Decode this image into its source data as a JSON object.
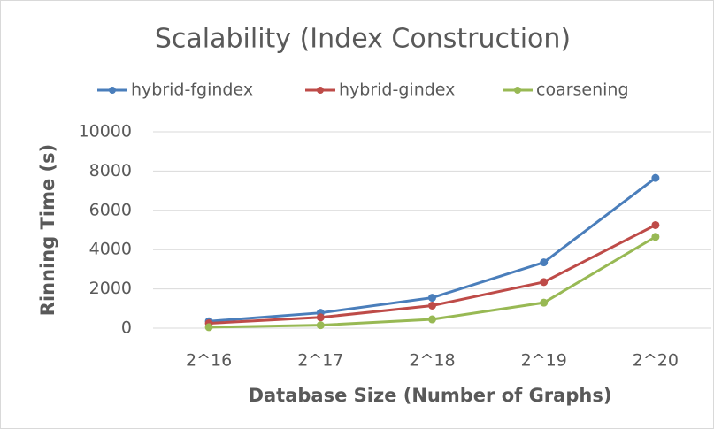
{
  "chart_data": {
    "type": "line",
    "title": "Scalability (Index Construction)",
    "x_label": "Database Size (Number of Graphs)",
    "y_label": "Rinning Time (s)",
    "categories": [
      "2^16",
      "2^17",
      "2^18",
      "2^19",
      "2^20"
    ],
    "series": [
      {
        "name": "hybrid-fgindex",
        "color": "#4a7ebb",
        "values": [
          350,
          780,
          1550,
          3350,
          7650
        ]
      },
      {
        "name": "hybrid-gindex",
        "color": "#be4b48",
        "values": [
          250,
          550,
          1150,
          2350,
          5250
        ]
      },
      {
        "name": "coarsening",
        "color": "#98b954",
        "values": [
          50,
          150,
          450,
          1300,
          4650
        ]
      }
    ],
    "ylim": [
      0,
      10000
    ],
    "yticks": [
      0,
      2000,
      4000,
      6000,
      8000,
      10000
    ],
    "grid": true,
    "legend": "top"
  }
}
